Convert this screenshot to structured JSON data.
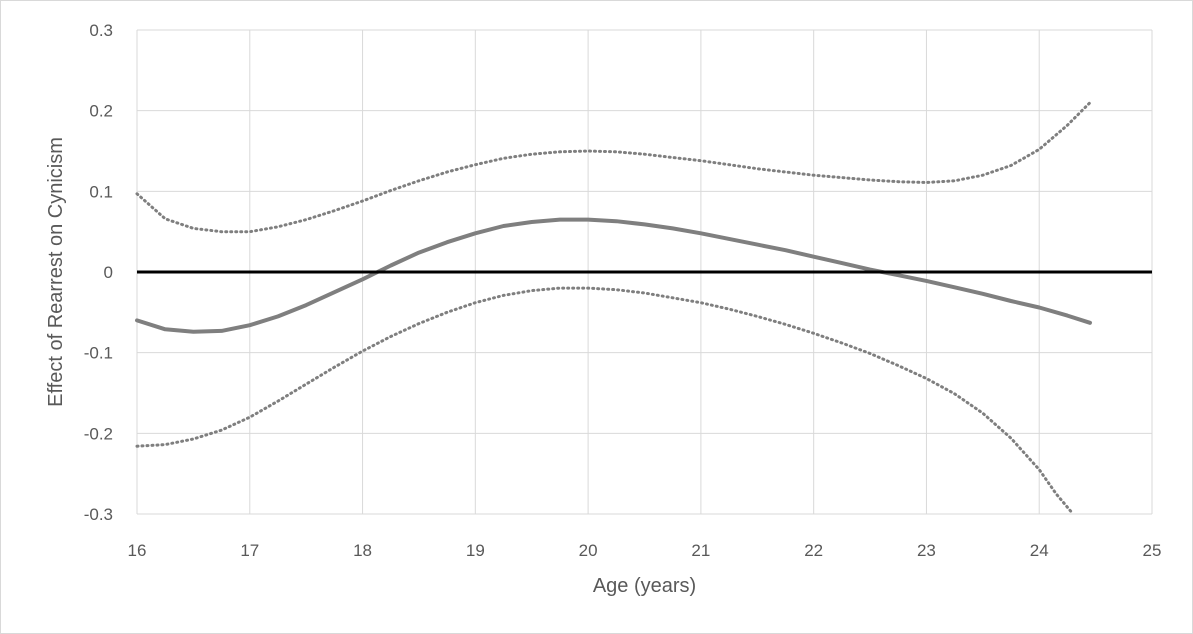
{
  "chart_data": {
    "type": "line",
    "title": "",
    "xlabel": "Age (years)",
    "ylabel": "Effect of Rearrest on Cynicism",
    "xlim": [
      16,
      25
    ],
    "ylim": [
      -0.3,
      0.3
    ],
    "x_ticks": [
      "16",
      "17",
      "18",
      "19",
      "20",
      "21",
      "22",
      "23",
      "24",
      "25"
    ],
    "y_ticks": [
      "0.3",
      "0.2",
      "0.1",
      "0",
      "-0.1",
      "-0.2",
      "-0.3"
    ],
    "grid": true,
    "legend": "none",
    "colors": {
      "estimate": "#7f7f7f",
      "bounds": "#7f7f7f",
      "zero_line": "#000000",
      "grid": "#d9d9d9",
      "text": "#595959"
    },
    "series": [
      {
        "style": "solid",
        "x": [
          16,
          16.25,
          16.5,
          16.75,
          17,
          17.25,
          17.5,
          17.75,
          18,
          18.25,
          18.5,
          18.75,
          19,
          19.25,
          19.5,
          19.75,
          20,
          20.25,
          20.5,
          20.75,
          21,
          21.25,
          21.5,
          21.75,
          22,
          22.25,
          22.5,
          22.75,
          23,
          23.25,
          23.5,
          23.75,
          24,
          24.25,
          24.45
        ],
        "y": [
          -0.06,
          -0.071,
          -0.074,
          -0.073,
          -0.066,
          -0.055,
          -0.041,
          -0.025,
          -0.009,
          0.008,
          0.024,
          0.037,
          0.048,
          0.057,
          0.062,
          0.065,
          0.065,
          0.063,
          0.059,
          0.054,
          0.048,
          0.041,
          0.034,
          0.027,
          0.019,
          0.011,
          0.003,
          -0.004,
          -0.011,
          -0.019,
          -0.027,
          -0.036,
          -0.044,
          -0.054,
          -0.063
        ]
      },
      {
        "style": "dotted",
        "x": [
          16,
          16.25,
          16.5,
          16.75,
          17,
          17.25,
          17.5,
          17.75,
          18,
          18.25,
          18.5,
          18.75,
          19,
          19.25,
          19.5,
          19.75,
          20,
          20.25,
          20.5,
          20.75,
          21,
          21.25,
          21.5,
          21.75,
          22,
          22.25,
          22.5,
          22.75,
          23,
          23.25,
          23.5,
          23.75,
          24,
          24.25,
          24.45
        ],
        "y": [
          0.097,
          0.066,
          0.054,
          0.05,
          0.05,
          0.056,
          0.065,
          0.076,
          0.088,
          0.101,
          0.113,
          0.124,
          0.133,
          0.141,
          0.146,
          0.149,
          0.15,
          0.149,
          0.146,
          0.142,
          0.138,
          0.133,
          0.128,
          0.124,
          0.12,
          0.117,
          0.114,
          0.112,
          0.111,
          0.113,
          0.12,
          0.132,
          0.152,
          0.182,
          0.21
        ]
      },
      {
        "style": "dotted",
        "x": [
          16,
          16.25,
          16.5,
          16.75,
          17,
          17.25,
          17.5,
          17.75,
          18,
          18.25,
          18.5,
          18.75,
          19,
          19.25,
          19.5,
          19.75,
          20,
          20.25,
          20.5,
          20.75,
          21,
          21.25,
          21.5,
          21.75,
          22,
          22.25,
          22.5,
          22.75,
          23,
          23.25,
          23.5,
          23.75,
          24,
          24.15,
          24.3
        ],
        "y": [
          -0.216,
          -0.214,
          -0.207,
          -0.196,
          -0.18,
          -0.16,
          -0.139,
          -0.118,
          -0.098,
          -0.08,
          -0.064,
          -0.05,
          -0.038,
          -0.029,
          -0.023,
          -0.02,
          -0.02,
          -0.022,
          -0.026,
          -0.032,
          -0.038,
          -0.046,
          -0.055,
          -0.065,
          -0.076,
          -0.088,
          -0.101,
          -0.116,
          -0.132,
          -0.151,
          -0.175,
          -0.206,
          -0.245,
          -0.275,
          -0.3
        ]
      }
    ],
    "reference_line": {
      "y": 0
    }
  }
}
